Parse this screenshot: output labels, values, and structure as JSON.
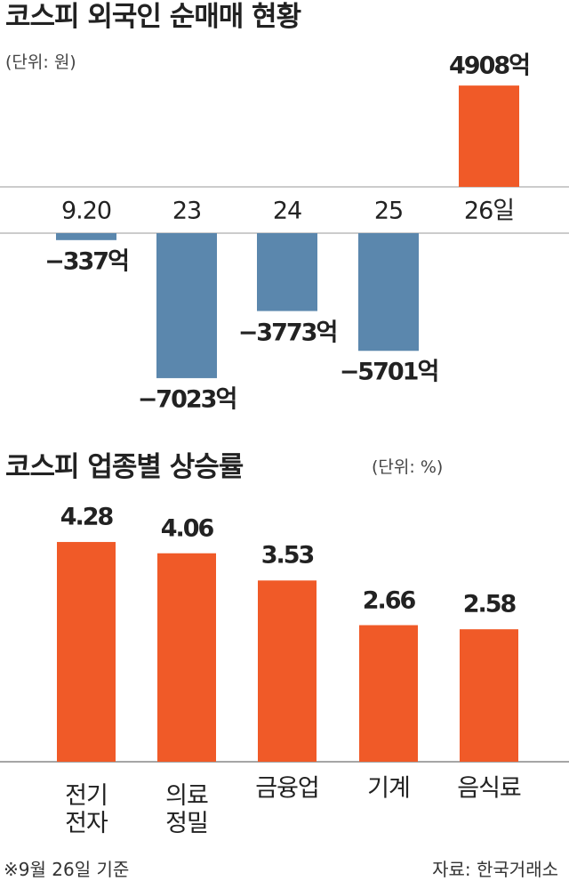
{
  "chart_data": [
    {
      "type": "bar",
      "title": "코스피 외국인 순매매 현황",
      "unit": "(단위: 원)",
      "categories": [
        "9.20",
        "23",
        "24",
        "25",
        "26일"
      ],
      "values": [
        -337,
        -7023,
        -3773,
        -5701,
        4908
      ],
      "value_labels": [
        "−337억",
        "−7023억",
        "−3773억",
        "−5701억",
        "4908억"
      ],
      "color_positive": "#f05a28",
      "color_negative": "#5b87ad"
    },
    {
      "type": "bar",
      "title": "코스피 업종별 상승률",
      "unit": "(단위: %)",
      "categories": [
        "전기\n전자",
        "의료\n정밀",
        "금융업",
        "기계",
        "음식료"
      ],
      "values": [
        4.28,
        4.06,
        3.53,
        2.66,
        2.58
      ],
      "color": "#f05a28"
    }
  ],
  "note": "※9월 26일 기준",
  "source": "자료: 한국거래소"
}
